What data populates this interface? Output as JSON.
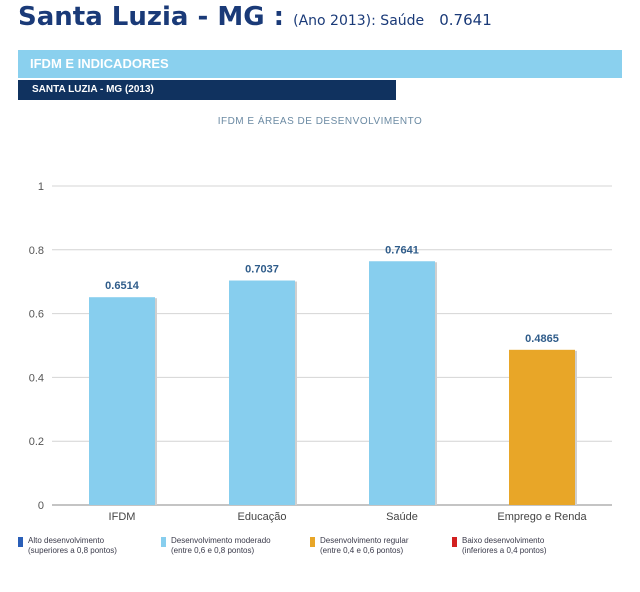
{
  "header": {
    "title": "Santa Luzia - MG :",
    "subtitle": "(Ano 2013): Saúde",
    "value": "0.7641"
  },
  "section": {
    "band_title": "IFDM E INDICADORES",
    "municipality": "SANTA LUZIA - MG (2013)"
  },
  "chart_data": {
    "type": "bar",
    "title": "IFDM E ÁREAS DE DESENVOLVIMENTO",
    "categories": [
      "IFDM",
      "Educação",
      "Saúde",
      "Emprego e Renda"
    ],
    "values": [
      0.6514,
      0.7037,
      0.7641,
      0.4865
    ],
    "value_labels": [
      "0.6514",
      "0.7037",
      "0.7641",
      "0.4865"
    ],
    "bar_colors": [
      "#87ceee",
      "#87ceee",
      "#87ceee",
      "#e8a628"
    ],
    "ylim": [
      0,
      1
    ],
    "yticks": [
      0,
      0.2,
      0.4,
      0.6,
      0.8,
      1
    ],
    "ytick_labels": [
      "0",
      "0.2",
      "0.4",
      "0.6",
      "0.8",
      "1"
    ],
    "grid": true,
    "legend_position": "bottom"
  },
  "legend": [
    {
      "color": "#2a5fb8",
      "line1": "Alto desenvolvimento",
      "line2": "(superiores a 0,8 pontos)"
    },
    {
      "color": "#87ceee",
      "line1": "Desenvolvimento moderado",
      "line2": "(entre 0,6 e 0,8 pontos)"
    },
    {
      "color": "#e8a628",
      "line1": "Desenvolvimento regular",
      "line2": "(entre 0,4 e 0,6 pontos)"
    },
    {
      "color": "#d22020",
      "line1": "Baixo desenvolvimento",
      "line2": "(inferiores a 0,4 pontos)"
    }
  ]
}
